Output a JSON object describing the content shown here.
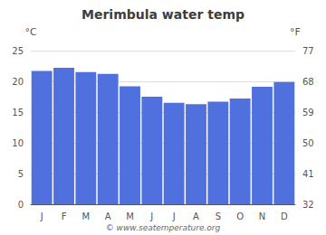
{
  "chart_data": {
    "type": "bar",
    "title": "Merimbula water temp",
    "categories": [
      "J",
      "F",
      "M",
      "A",
      "M",
      "J",
      "J",
      "A",
      "S",
      "O",
      "N",
      "D"
    ],
    "values": [
      21.7,
      22.2,
      21.5,
      21.2,
      19.2,
      17.5,
      16.5,
      16.3,
      16.7,
      17.2,
      19.1,
      19.9
    ],
    "ylabel": "°C",
    "ylim": [
      0,
      25
    ],
    "yticks": [
      0,
      5,
      10,
      15,
      20,
      25
    ],
    "y2label": "°F",
    "y2lim": [
      32,
      77
    ],
    "y2ticks": [
      32,
      41,
      50,
      59,
      68,
      77
    ],
    "grid": true,
    "annotation": "© www.seatemperature.org"
  }
}
